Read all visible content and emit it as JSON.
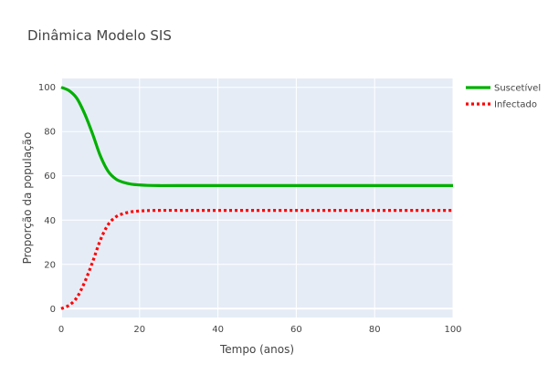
{
  "chart_data": {
    "type": "line",
    "title": "Dinâmica Modelo SIS",
    "xlabel": "Tempo (anos)",
    "ylabel": "Proporção da população",
    "xlim": [
      0,
      100
    ],
    "ylim": [
      -4,
      104
    ],
    "xticks": [
      0,
      20,
      40,
      60,
      80,
      100
    ],
    "yticks": [
      0,
      20,
      40,
      60,
      80,
      100
    ],
    "grid": true,
    "legend_position": "top-right",
    "background": "#e5ecf6",
    "series": [
      {
        "name": "Suscetível",
        "color": "#00b000",
        "dash": "solid",
        "x": [
          0,
          2,
          4,
          6,
          8,
          10,
          12,
          14,
          16,
          18,
          20,
          22,
          25,
          30,
          40,
          60,
          80,
          100
        ],
        "y": [
          100,
          98.5,
          95,
          88,
          79,
          69,
          62,
          58.5,
          57,
          56.2,
          55.9,
          55.7,
          55.6,
          55.6,
          55.6,
          55.6,
          55.6,
          55.6
        ]
      },
      {
        "name": "Infectado",
        "color": "#ff0000",
        "dash": "dot",
        "x": [
          0,
          2,
          4,
          6,
          8,
          10,
          12,
          14,
          16,
          18,
          20,
          22,
          25,
          30,
          40,
          60,
          80,
          100
        ],
        "y": [
          0,
          1.5,
          5,
          12,
          21,
          31,
          38,
          41.5,
          43,
          43.8,
          44.1,
          44.3,
          44.4,
          44.4,
          44.4,
          44.4,
          44.4,
          44.4
        ]
      }
    ]
  }
}
